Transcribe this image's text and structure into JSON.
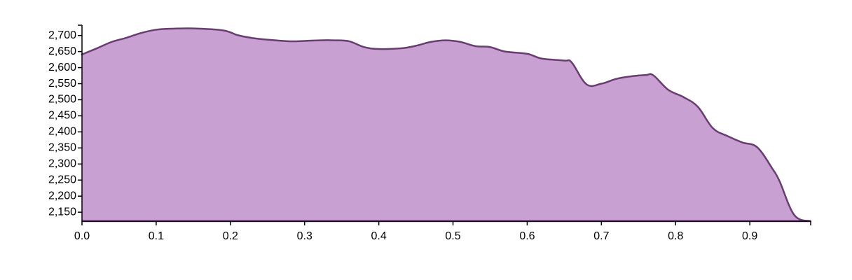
{
  "chart_data": {
    "type": "area",
    "title": "",
    "xlabel": "",
    "ylabel": "",
    "xlim": [
      0,
      0.982
    ],
    "ylim": [
      2122,
      2732
    ],
    "x_ticks": [
      0.0,
      0.1,
      0.2,
      0.3,
      0.4,
      0.5,
      0.6,
      0.7,
      0.8,
      0.9
    ],
    "x_tick_labels": [
      "0.0",
      "0.1",
      "0.2",
      "0.3",
      "0.4",
      "0.5",
      "0.6",
      "0.7",
      "0.8",
      "0.9"
    ],
    "y_ticks": [
      2150,
      2200,
      2250,
      2300,
      2350,
      2400,
      2450,
      2500,
      2550,
      2600,
      2650,
      2700
    ],
    "y_tick_labels": [
      "2,150",
      "2,200",
      "2,250",
      "2,300",
      "2,350",
      "2,400",
      "2,450",
      "2,500",
      "2,550",
      "2,600",
      "2,650",
      "2,700"
    ],
    "grid": false,
    "legend": "none",
    "fill_color": "#c9a0d2",
    "line_color": "#6a3d72",
    "series": [
      {
        "x": [
          0.0,
          0.02,
          0.04,
          0.06,
          0.08,
          0.1,
          0.12,
          0.15,
          0.19,
          0.21,
          0.23,
          0.25,
          0.28,
          0.3,
          0.32,
          0.34,
          0.36,
          0.38,
          0.4,
          0.43,
          0.45,
          0.47,
          0.49,
          0.51,
          0.53,
          0.55,
          0.57,
          0.6,
          0.62,
          0.65,
          0.66,
          0.68,
          0.7,
          0.72,
          0.74,
          0.76,
          0.77,
          0.79,
          0.81,
          0.83,
          0.85,
          0.87,
          0.89,
          0.91,
          0.93,
          0.94,
          0.96,
          0.982
        ],
        "values": [
          2641,
          2660,
          2680,
          2693,
          2708,
          2718,
          2721,
          2722,
          2716,
          2701,
          2692,
          2687,
          2682,
          2683,
          2685,
          2685,
          2682,
          2664,
          2658,
          2660,
          2668,
          2680,
          2685,
          2680,
          2667,
          2664,
          2650,
          2643,
          2628,
          2622,
          2616,
          2548,
          2550,
          2565,
          2573,
          2577,
          2576,
          2531,
          2509,
          2478,
          2412,
          2387,
          2367,
          2352,
          2287,
          2247,
          2141,
          2122
        ]
      }
    ]
  }
}
